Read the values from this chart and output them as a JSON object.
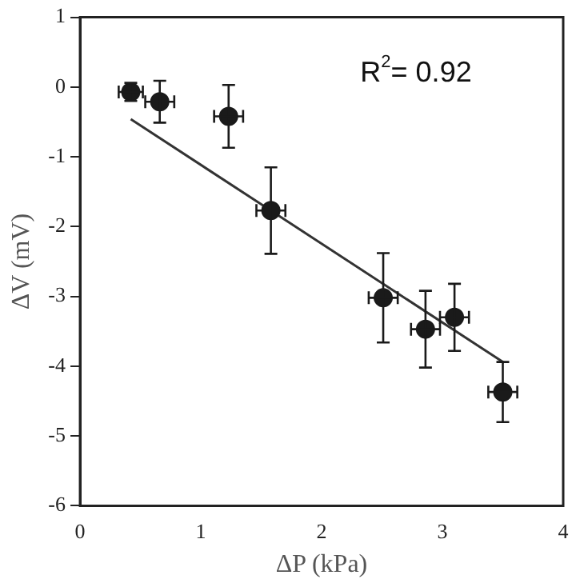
{
  "chart_data": {
    "type": "scatter",
    "xlabel": "ΔP (kPa)",
    "ylabel": "ΔV (mV)",
    "xlim": [
      0,
      4
    ],
    "xticks": [
      0,
      1,
      2,
      3,
      4
    ],
    "ylim": [
      -6,
      1
    ],
    "yticks": [
      -6,
      -5,
      -4,
      -3,
      -2,
      -1,
      0,
      1
    ],
    "grid": false,
    "legend": false,
    "marker": "circle",
    "annotations": [
      "R$^{2}$= 0.92"
    ],
    "series": [
      {
        "color": "#1a1a1a",
        "x": [
          0.42,
          0.66,
          1.23,
          1.58,
          2.51,
          2.86,
          3.1,
          3.5
        ],
        "values": [
          -0.07,
          -0.21,
          -0.42,
          -1.77,
          -3.02,
          -3.47,
          -3.3,
          -4.37
        ],
        "errors": [
          0.13,
          0.3,
          0.45,
          0.62,
          0.64,
          0.55,
          0.48,
          0.43
        ],
        "xerrors": [
          0.1,
          0.12,
          0.12,
          0.12,
          0.12,
          0.12,
          0.12,
          0.12
        ]
      },
      {
        "type": "line",
        "color": "#333333",
        "marker": "none",
        "x": [
          0.42,
          3.51
        ],
        "values": [
          -0.46,
          -3.95
        ]
      }
    ]
  }
}
